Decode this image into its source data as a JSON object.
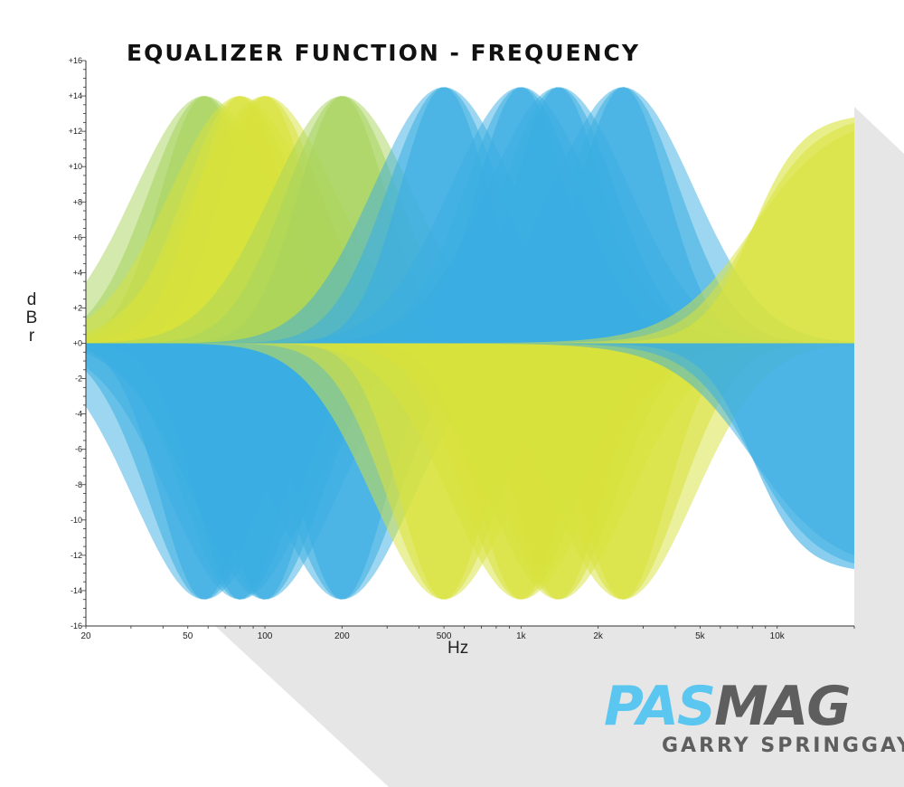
{
  "title": "EQUALIZER FUNCTION - FREQUENCY",
  "brand": {
    "part1": "PAS",
    "part2": "MAG",
    "author": "GARRY SPRINGGAY"
  },
  "colors": {
    "blue": "#3aaee2",
    "yellow": "#d8e23c",
    "green": "#a8d45e",
    "axis": "#333333",
    "shadow": "#e6e6e6"
  },
  "chart_data": {
    "type": "area",
    "title": "EQUALIZER FUNCTION - FREQUENCY",
    "xlabel": "Hz",
    "ylabel": "dBr",
    "x_scale": "log",
    "xlim": [
      20,
      20000
    ],
    "ylim": [
      -16,
      16
    ],
    "x_ticks": [
      20,
      50,
      100,
      200,
      500,
      1000,
      2000,
      5000,
      10000
    ],
    "x_tick_labels": [
      "20",
      "50",
      "100",
      "200",
      "500",
      "1k",
      "2k",
      "5k",
      "10k"
    ],
    "y_ticks": [
      16,
      14,
      12,
      10,
      8,
      6,
      4,
      2,
      0,
      -2,
      -4,
      -6,
      -8,
      -10,
      -12,
      -14,
      -16
    ],
    "y_tick_labels": [
      "+16",
      "+14",
      "+12",
      "+10",
      "+8",
      "+6",
      "+4",
      "+2",
      "+0",
      "-2",
      "-4",
      "-6",
      "-8",
      "-10",
      "-12",
      "-14",
      "-16"
    ],
    "grid": false,
    "legend": "none",
    "bands": [
      {
        "kind": "peak",
        "center_hz": 58,
        "gain_db": 14,
        "color": "green"
      },
      {
        "kind": "peak",
        "center_hz": 80,
        "gain_db": 14,
        "color": "yellow"
      },
      {
        "kind": "peak",
        "center_hz": 100,
        "gain_db": 14,
        "color": "yellow"
      },
      {
        "kind": "peak",
        "center_hz": 200,
        "gain_db": 14,
        "color": "green"
      },
      {
        "kind": "peak",
        "center_hz": 500,
        "gain_db": 14.5,
        "color": "blue"
      },
      {
        "kind": "peak",
        "center_hz": 1000,
        "gain_db": 14.5,
        "color": "blue"
      },
      {
        "kind": "peak",
        "center_hz": 1400,
        "gain_db": 14.5,
        "color": "blue"
      },
      {
        "kind": "peak",
        "center_hz": 2500,
        "gain_db": 14.5,
        "color": "blue"
      },
      {
        "kind": "high_shelf",
        "corner_hz": 8000,
        "gain_db": 13,
        "color": "yellow"
      },
      {
        "kind": "peak",
        "center_hz": 58,
        "gain_db": -14.5,
        "color": "blue"
      },
      {
        "kind": "peak",
        "center_hz": 80,
        "gain_db": -14.5,
        "color": "blue"
      },
      {
        "kind": "peak",
        "center_hz": 100,
        "gain_db": -14.5,
        "color": "blue"
      },
      {
        "kind": "peak",
        "center_hz": 200,
        "gain_db": -14.5,
        "color": "blue"
      },
      {
        "kind": "peak",
        "center_hz": 500,
        "gain_db": -14.5,
        "color": "yellow"
      },
      {
        "kind": "peak",
        "center_hz": 1000,
        "gain_db": -14.5,
        "color": "yellow"
      },
      {
        "kind": "peak",
        "center_hz": 1400,
        "gain_db": -14.5,
        "color": "yellow"
      },
      {
        "kind": "peak",
        "center_hz": 2500,
        "gain_db": -14.5,
        "color": "yellow"
      },
      {
        "kind": "high_shelf",
        "corner_hz": 8000,
        "gain_db": -13,
        "color": "blue"
      }
    ]
  }
}
